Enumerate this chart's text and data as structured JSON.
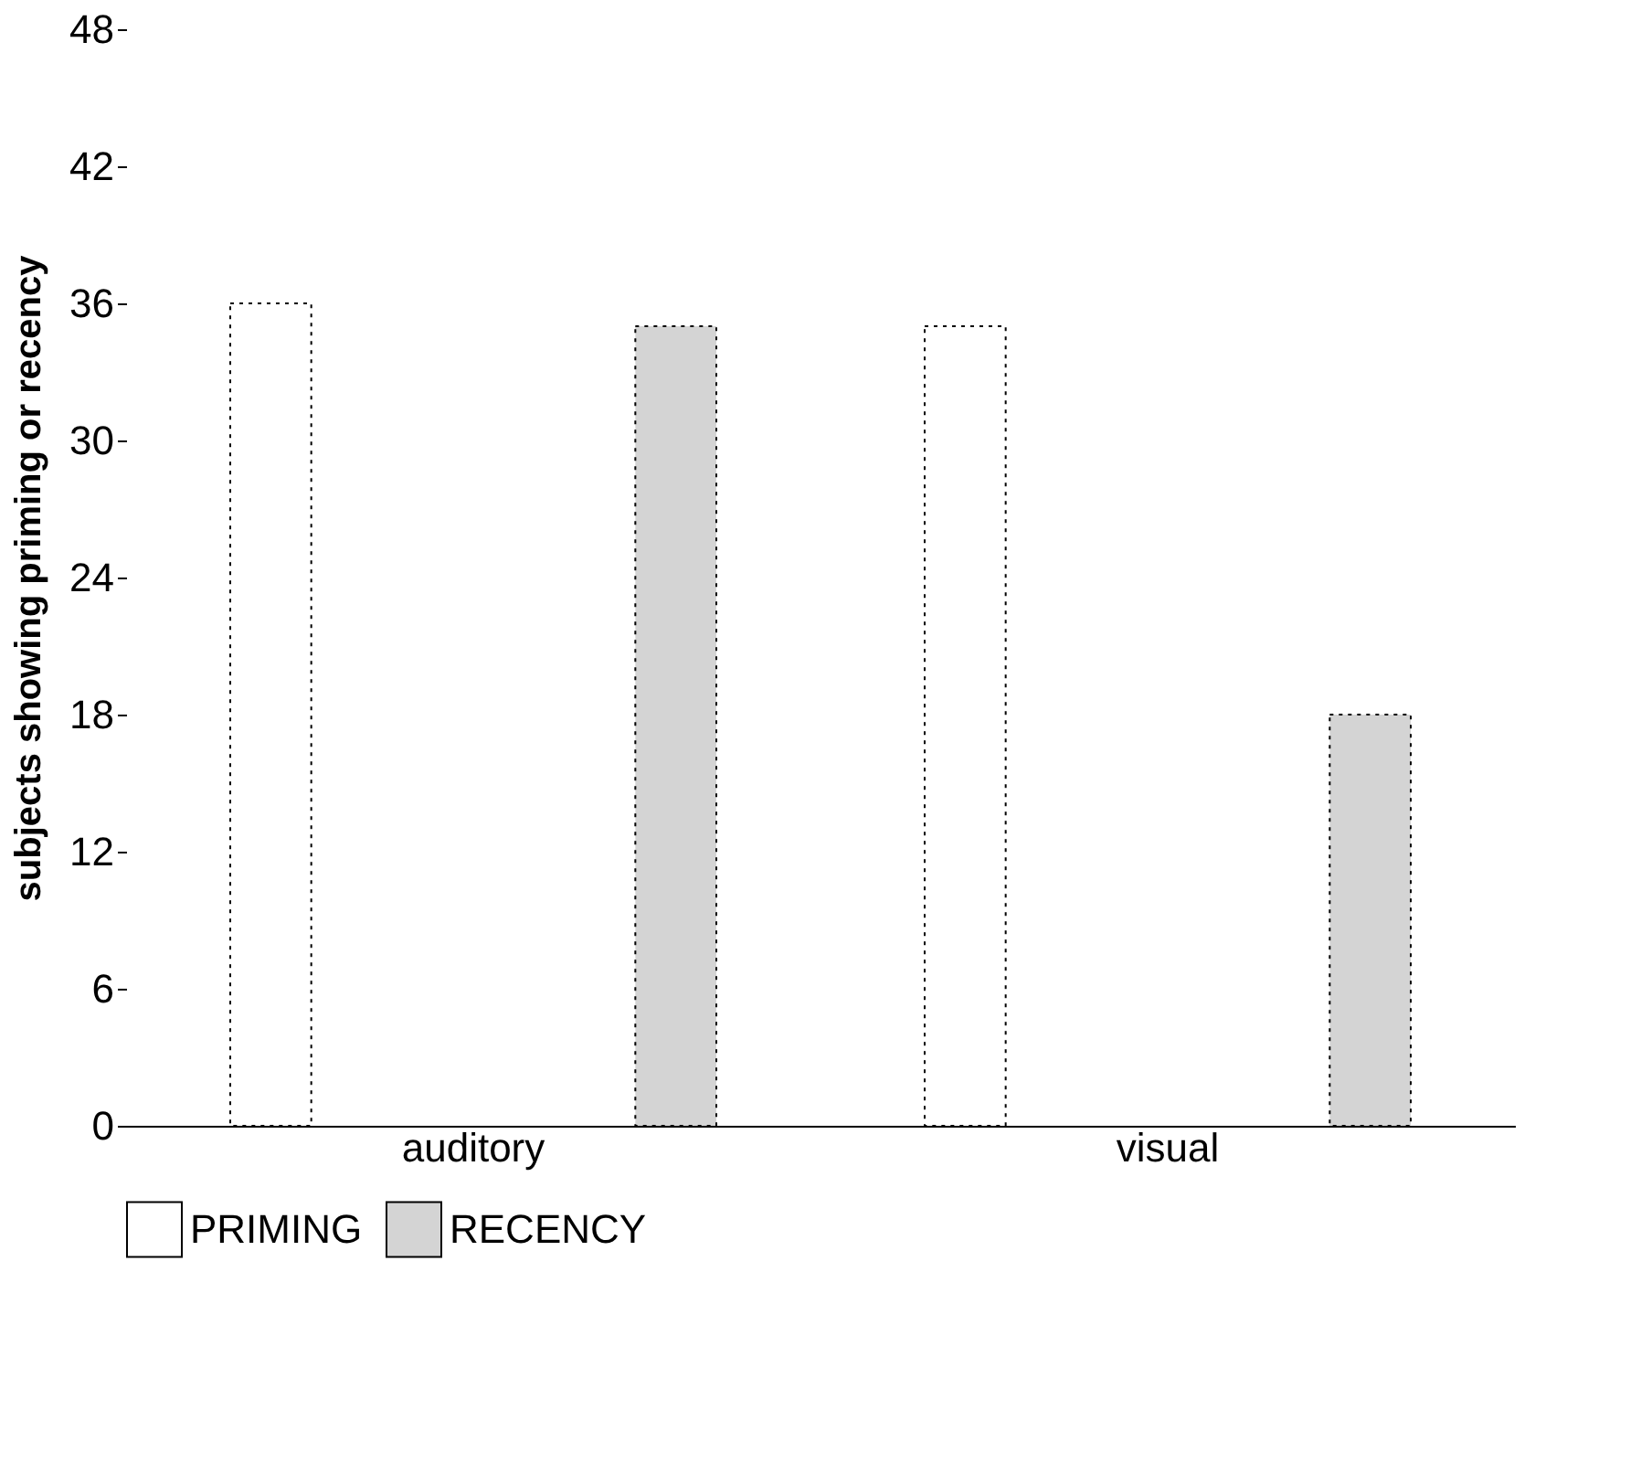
{
  "chart_data": {
    "type": "bar",
    "ylabel": "subjects showing priming or recency",
    "categories": [
      "auditory",
      "visual"
    ],
    "series": [
      {
        "name": "PRIMING",
        "color": "#ffffff",
        "values": [
          36,
          35
        ]
      },
      {
        "name": "RECENCY",
        "color": "#d4d4d4",
        "values": [
          35,
          18
        ]
      }
    ],
    "ylim": [
      0,
      48
    ],
    "yticks": [
      0,
      6,
      12,
      18,
      24,
      30,
      36,
      42,
      48
    ],
    "grid": false,
    "legend": "bottom"
  }
}
